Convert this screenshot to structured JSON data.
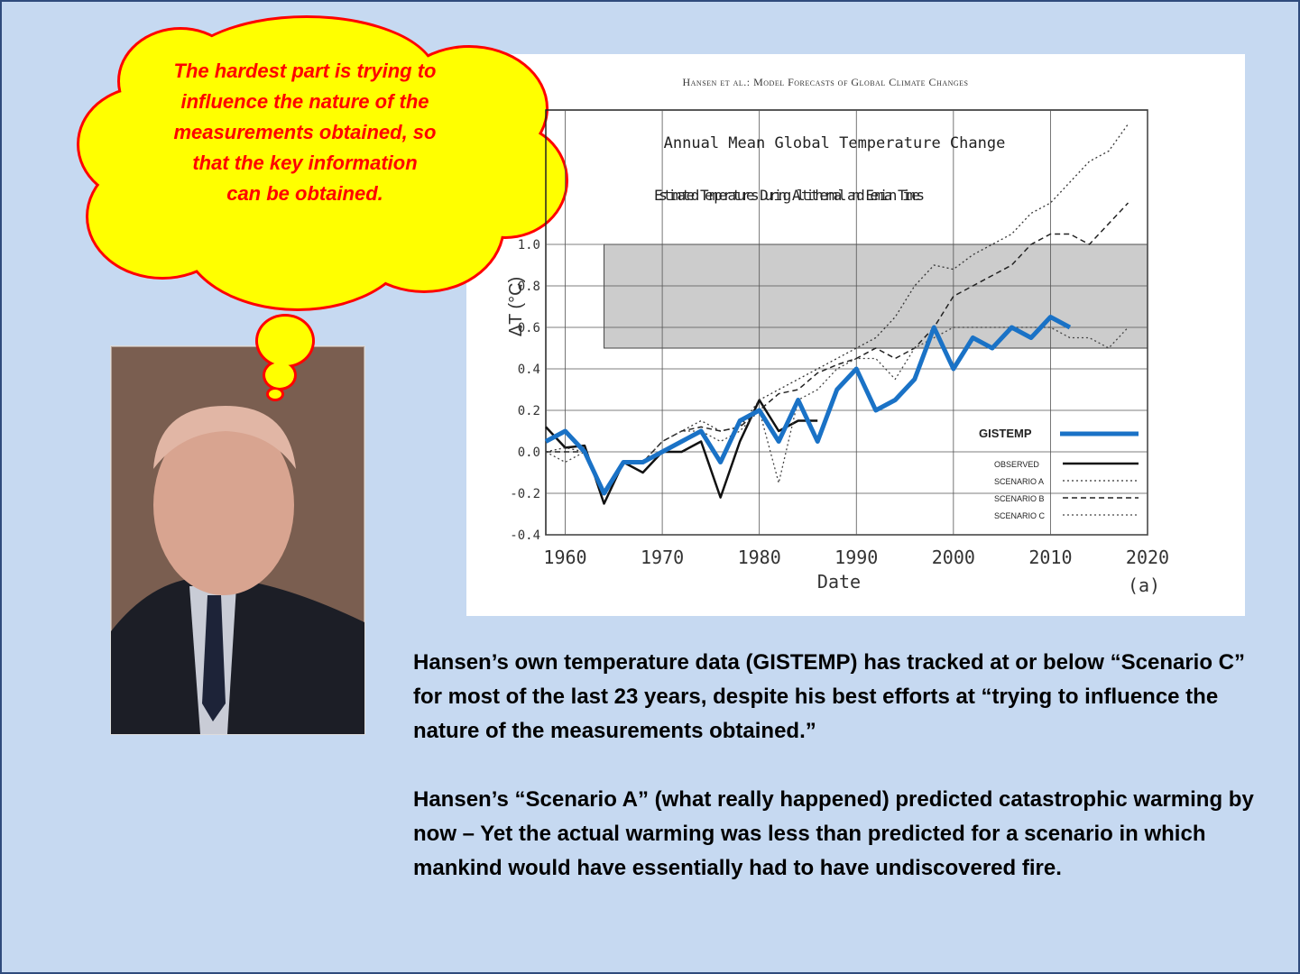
{
  "header": "Hansen et al.: Model Forecasts of Global Climate Changes",
  "bubble": {
    "lines": [
      "The hardest part is trying to",
      "influence the nature of the",
      "measurements obtained, so",
      "that the key information",
      "can be obtained."
    ]
  },
  "paragraphs": [
    "Hansen’s own temperature data (GISTEMP) has tracked at or below “Scenario C” for most of the last 23 years, despite his best efforts at “trying to influence the nature of the measurements obtained.”",
    "Hansen’s “Scenario A” (what really happened) predicted catastrophic warming by now – Yet the actual warming was less than predicted for a scenario in which mankind would have essentially had to have undiscovered fire."
  ],
  "chart_data": {
    "type": "line",
    "title": "Annual Mean Global Temperature Change",
    "annotation": "Estimated Temperatures During Altithermal and Eemian Times",
    "x_label": "Date",
    "y_label": "ΔT (°C)",
    "panel_label": "(a)",
    "x": [
      1958,
      1960,
      1962,
      1964,
      1966,
      1968,
      1970,
      1972,
      1974,
      1976,
      1978,
      1980,
      1982,
      1984,
      1986,
      1988,
      1990,
      1992,
      1994,
      1996,
      1998,
      2000,
      2002,
      2004,
      2006,
      2008,
      2010,
      2012,
      2014,
      2016,
      2018
    ],
    "series": [
      {
        "name": "OBSERVED",
        "color": "#111111",
        "style": "solid",
        "values": [
          0.12,
          0.02,
          0.03,
          -0.25,
          -0.05,
          -0.1,
          0.0,
          0.0,
          0.05,
          -0.22,
          0.05,
          0.25,
          0.1,
          0.15,
          0.15,
          null,
          null,
          null,
          null,
          null,
          null,
          null,
          null,
          null,
          null,
          null,
          null,
          null,
          null,
          null,
          null
        ]
      },
      {
        "name": "SCENARIO A",
        "color": "#333333",
        "style": "dotted",
        "values": [
          0.0,
          0.02,
          0.0,
          -0.2,
          -0.05,
          -0.05,
          0.05,
          0.1,
          0.15,
          0.1,
          0.12,
          0.25,
          0.3,
          0.35,
          0.4,
          0.45,
          0.5,
          0.55,
          0.65,
          0.8,
          0.9,
          0.88,
          0.95,
          1.0,
          1.05,
          1.15,
          1.2,
          1.3,
          1.4,
          1.45,
          1.58
        ]
      },
      {
        "name": "SCENARIO B",
        "color": "#222222",
        "style": "dashed",
        "values": [
          0.0,
          0.0,
          0.0,
          -0.2,
          -0.05,
          -0.05,
          0.05,
          0.1,
          0.12,
          0.1,
          0.12,
          0.2,
          0.28,
          0.3,
          0.38,
          0.42,
          0.45,
          0.5,
          0.45,
          0.5,
          0.6,
          0.75,
          0.8,
          0.85,
          0.9,
          1.0,
          1.05,
          1.05,
          1.0,
          1.1,
          1.2
        ]
      },
      {
        "name": "SCENARIO C",
        "color": "#444444",
        "style": "dotted",
        "values": [
          0.0,
          -0.05,
          0.0,
          -0.2,
          -0.05,
          -0.05,
          0.05,
          0.1,
          0.1,
          0.05,
          0.1,
          0.2,
          -0.15,
          0.25,
          0.3,
          0.4,
          0.45,
          0.45,
          0.35,
          0.5,
          0.55,
          0.6,
          0.6,
          0.6,
          0.6,
          0.6,
          0.6,
          0.55,
          0.55,
          0.5,
          0.6
        ]
      },
      {
        "name": "GISTEMP",
        "color": "#1a72c6",
        "style": "thick",
        "values": [
          0.05,
          0.1,
          0.0,
          -0.2,
          -0.05,
          -0.05,
          0.0,
          0.05,
          0.1,
          -0.05,
          0.15,
          0.2,
          0.05,
          0.25,
          0.05,
          0.3,
          0.4,
          0.2,
          0.25,
          0.35,
          0.6,
          0.4,
          0.55,
          0.5,
          0.6,
          0.55,
          0.65,
          0.6,
          null,
          null,
          null
        ]
      }
    ],
    "shaded_band": {
      "xlim": [
        1964,
        2020
      ],
      "ylim": [
        0.5,
        1.0
      ]
    },
    "xlim": [
      1958,
      2020
    ],
    "ylim": [
      -0.4,
      1.6
    ],
    "xticks": [
      1960,
      1970,
      1980,
      1990,
      2000,
      2010,
      2020
    ],
    "yticks": [
      -0.4,
      -0.2,
      {
        "value": 0,
        "label": "0.0"
      },
      0.2,
      0.4,
      0.6,
      0.8,
      {
        "value": 1,
        "label": "1.0"
      }
    ],
    "grid": true,
    "legend": "lower right"
  }
}
